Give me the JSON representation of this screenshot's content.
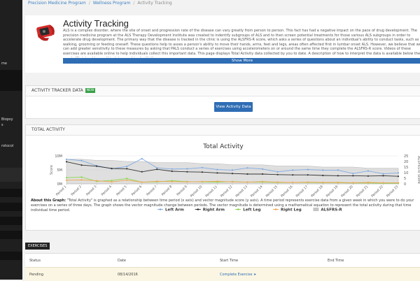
{
  "breadcrumbs": [
    "Precision Medicine Program",
    "Wellness Program",
    "Activity Tracking"
  ],
  "sidebar": {
    "fragments": [
      "me",
      "Biopsy",
      "s",
      "rotocol"
    ]
  },
  "intro": {
    "title": "Activity Tracking",
    "body": "ALS is a complex disorder, where the site of onset and progression rate of the disease can vary greatly from person to person. This fact has had a negative impact on the pace of drug development. The precision medicine program at the ALS Therapy Development Institute was created to indentify subgroups of ALS and to then screen potential treatments for those various ALS subgroups in order to accelerate drug development. The primary way that the disease is tracked in the clinic is using the ALSFRS-R score, which asks a series of questions about an individual's ability to conduct tasks, such as walking, grooming or feeding oneself. These questions help to asses a person's ability to move their hands, arms, feet and legs, areas often affected first in lumbar onset ALS. However, we believe that we can add greater sensitivity to these measures by asking that PALS conduct a series of exercises using accelerometers on or around the same time they complete the ALSFRS-R score. Videos of these exercises are available online to help individuals collect this important data. This page displays Total Activity data collected by you to date. A description of how to interpret the data is available below the graph. We intend to use this data, combined with the",
    "show_more_label": "Show More"
  },
  "activity_tracker": {
    "heading": "ACTIVITY TRACKER DATA",
    "badge": "NEW",
    "view_button_label": "View Activity Data"
  },
  "total_activity": {
    "heading": "TOTAL ACTIVITY",
    "about_label": "About this Graph:",
    "about_text": " \"Total Activity\" is graphed as a relationship between time period (x axis) and vector magnitude score (y axis). A time period represents exercise data from a given week in which you were to do your exercises on a series of three days. The graph shows the vector magnitude change between periods. The vector magnitude is determined using a mathematical equation to represent the total activity during that time individual time period."
  },
  "chart_data": {
    "type": "line",
    "title": "Total Activity",
    "ylabel": "Score",
    "y2label": "ALSFRS-R Score",
    "ytick_labels": [
      "10M",
      "5M",
      "0M"
    ],
    "ylim": [
      0,
      10000000
    ],
    "y2_ticks": [
      "25",
      "20",
      "15",
      "10",
      "5",
      "0"
    ],
    "y2lim": [
      0,
      25
    ],
    "categories": [
      "Period 1",
      "Period 2",
      "Period 3",
      "Period 4",
      "Period 5",
      "Period 6",
      "Period 7",
      "Period 8",
      "Period 9",
      "Period 10",
      "Period 11",
      "Period 12",
      "Period 13",
      "Period 14",
      "Period 15",
      "Period 16",
      "Period 17",
      "Period 18",
      "Period 19",
      "Period 20",
      "Period 21",
      "Period 22",
      "Period 23"
    ],
    "series": [
      {
        "name": "Left Arm",
        "color": "#7fa9e0",
        "values": [
          8800000,
          8300000,
          6500000,
          5400000,
          6200000,
          9000000,
          5700000,
          5300000,
          5400000,
          5800000,
          5100000,
          4900000,
          5700000,
          5300000,
          4300000,
          4900000,
          5100000,
          4900000,
          4900000,
          3700000,
          4600000,
          3600000,
          3900000
        ]
      },
      {
        "name": "Right Arm",
        "color": "#333333",
        "values": [
          7900000,
          6700000,
          6300000,
          5500000,
          5400000,
          4300000,
          5200000,
          4500000,
          4300000,
          4200000,
          3900000,
          3700000,
          3500000,
          3500000,
          3300000,
          3200000,
          3200000,
          3000000,
          2900000,
          2900000,
          2800000,
          2900000,
          2700000
        ]
      },
      {
        "name": "Left Leg",
        "color": "#8bd650",
        "values": [
          2200000,
          2400000,
          900000,
          1200000,
          1900000,
          600000,
          700000,
          1100000,
          800000,
          700000,
          600000,
          800000,
          600000,
          600000,
          500000,
          500000,
          500000,
          400000,
          400000,
          300000,
          300000,
          200000,
          200000
        ]
      },
      {
        "name": "Right Leg",
        "color": "#f0a650",
        "values": [
          1300000,
          1400000,
          1100000,
          700000,
          1300000,
          600000,
          900000,
          800000,
          700000,
          800000,
          900000,
          700000,
          600000,
          800000,
          600000,
          500000,
          600000,
          500000,
          500000,
          400000,
          500000,
          400000,
          400000
        ]
      },
      {
        "name": "ALSFRS-R",
        "color": "#c4c4c4",
        "type": "area",
        "axis": "right",
        "values": [
          22,
          22,
          21,
          21,
          20,
          20,
          19,
          19,
          19,
          18,
          18,
          17,
          17,
          17,
          16,
          16,
          16,
          15,
          15,
          15,
          14,
          14,
          14
        ]
      }
    ]
  },
  "exercises": {
    "tab_label": "EXERCISES",
    "columns": [
      "Status",
      "Date",
      "Start Time",
      "End Time"
    ],
    "rows": [
      {
        "status": "Pending",
        "date": "08/14/2016",
        "start_time": "Complete Exercise",
        "end_time": ""
      }
    ]
  }
}
